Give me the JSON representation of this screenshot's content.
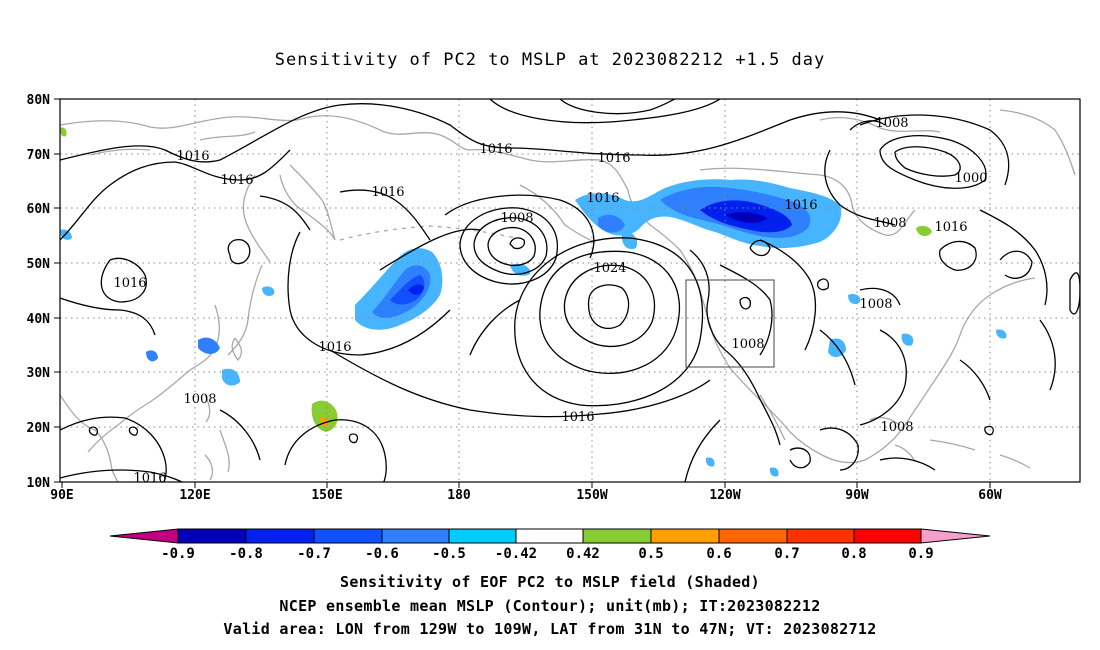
{
  "title": "Sensitivity of PC2 to MSLP at 2023082212 +1.5 day",
  "map": {
    "lat_labels": [
      "80N",
      "70N",
      "60N",
      "50N",
      "40N",
      "30N",
      "20N",
      "10N"
    ],
    "lon_labels": [
      "90E",
      "120E",
      "150E",
      "180",
      "150W",
      "120W",
      "90W",
      "60W"
    ],
    "contour_labels": [
      "1016",
      "1016",
      "1016",
      "1016",
      "1016",
      "1016",
      "1016",
      "1016",
      "1008",
      "1008",
      "1016",
      "1016",
      "1016",
      "1024",
      "1016",
      "1016",
      "1008",
      "1008",
      "1008",
      "1008",
      "1016",
      "1000",
      "1008",
      "1008",
      "1016",
      "1008"
    ],
    "valid_box": {
      "lon": [
        "129W",
        "109W"
      ],
      "lat": [
        "31N",
        "47N"
      ]
    }
  },
  "colorbar": {
    "labels": [
      "-0.9",
      "-0.8",
      "-0.7",
      "-0.6",
      "-0.5",
      "-0.42",
      "0.42",
      "0.5",
      "0.6",
      "0.7",
      "0.8",
      "0.9"
    ],
    "colors": [
      "#c0007f",
      "#0000b8",
      "#0020ef",
      "#1050ff",
      "#2e80ff",
      "#46b4ff",
      "#00ccff",
      "#ffffff",
      "#88cc33",
      "#ffa000",
      "#ff6600",
      "#ff3300",
      "#ff0000",
      "#f4a0cc"
    ]
  },
  "captions": {
    "line1": "Sensitivity of EOF PC2 to MSLP field (Shaded)",
    "line2": "NCEP ensemble mean MSLP (Contour); unit(mb); IT:2023082212",
    "line3": "Valid area: LON from 129W to 109W, LAT from 31N to 47N; VT: 2023082712"
  }
}
